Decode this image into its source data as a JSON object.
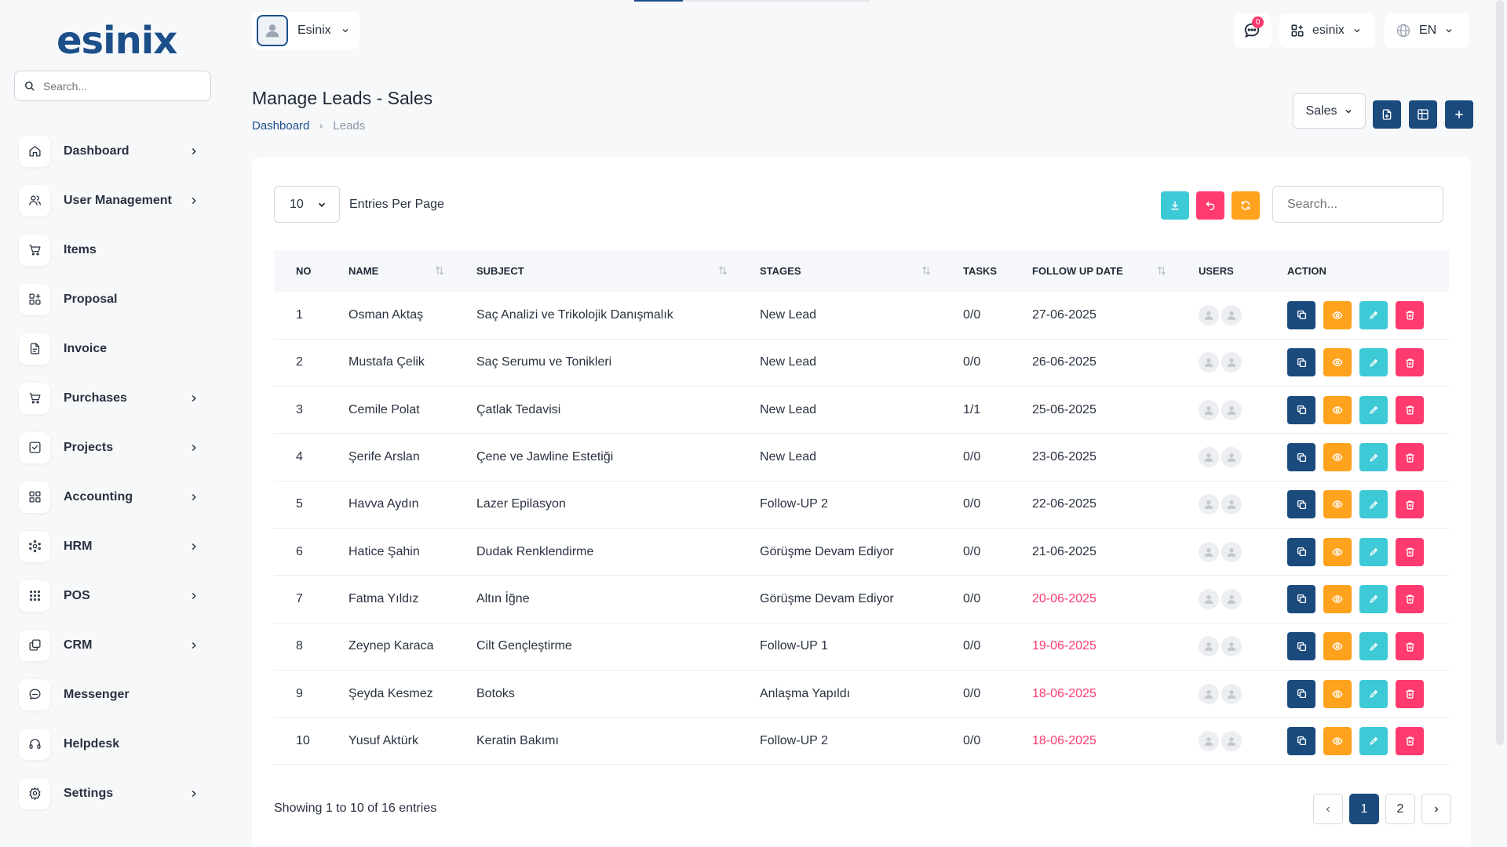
{
  "brand": {
    "logo": "esinix"
  },
  "sidebar": {
    "search_placeholder": "Search...",
    "items": [
      {
        "label": "Dashboard",
        "icon": "home-icon",
        "has_children": true
      },
      {
        "label": "User Management",
        "icon": "users-icon",
        "has_children": true
      },
      {
        "label": "Items",
        "icon": "cart-icon",
        "has_children": false
      },
      {
        "label": "Proposal",
        "icon": "apps-icon",
        "has_children": false
      },
      {
        "label": "Invoice",
        "icon": "file-icon",
        "has_children": false
      },
      {
        "label": "Purchases",
        "icon": "cart-icon",
        "has_children": true
      },
      {
        "label": "Projects",
        "icon": "checkbox-icon",
        "has_children": true
      },
      {
        "label": "Accounting",
        "icon": "grid-icon",
        "has_children": true
      },
      {
        "label": "HRM",
        "icon": "network-icon",
        "has_children": true
      },
      {
        "label": "POS",
        "icon": "dots-grid-icon",
        "has_children": true
      },
      {
        "label": "CRM",
        "icon": "layers-icon",
        "has_children": true
      },
      {
        "label": "Messenger",
        "icon": "message-icon",
        "has_children": false
      },
      {
        "label": "Helpdesk",
        "icon": "headset-icon",
        "has_children": false
      },
      {
        "label": "Settings",
        "icon": "settings-icon",
        "has_children": true
      }
    ]
  },
  "topbar": {
    "user_name": "Esinix",
    "notification_count": "0",
    "workspace": "esinix",
    "language": "EN"
  },
  "page": {
    "title": "Manage Leads - Sales",
    "breadcrumb": {
      "home": "Dashboard",
      "current": "Leads"
    },
    "pipeline_select": "Sales"
  },
  "table_controls": {
    "entries_value": "10",
    "entries_label": "Entries Per Page",
    "search_placeholder": "Search..."
  },
  "table": {
    "columns": [
      "NO",
      "NAME",
      "SUBJECT",
      "STAGES",
      "TASKS",
      "FOLLOW UP DATE",
      "USERS",
      "ACTION"
    ],
    "rows": [
      {
        "no": "1",
        "name": "Osman Aktaş",
        "subject": "Saç Analizi ve Trikolojik Danışmalık",
        "stage": "New Lead",
        "tasks": "0/0",
        "date": "27-06-2025",
        "overdue": false
      },
      {
        "no": "2",
        "name": "Mustafa Çelik",
        "subject": "Saç Serumu ve Tonikleri",
        "stage": "New Lead",
        "tasks": "0/0",
        "date": "26-06-2025",
        "overdue": false
      },
      {
        "no": "3",
        "name": "Cemile Polat",
        "subject": "Çatlak Tedavisi",
        "stage": "New Lead",
        "tasks": "1/1",
        "date": "25-06-2025",
        "overdue": false
      },
      {
        "no": "4",
        "name": "Şerife Arslan",
        "subject": "Çene ve Jawline Estetiği",
        "stage": "New Lead",
        "tasks": "0/0",
        "date": "23-06-2025",
        "overdue": false
      },
      {
        "no": "5",
        "name": "Havva Aydın",
        "subject": "Lazer Epilasyon",
        "stage": "Follow-UP 2",
        "tasks": "0/0",
        "date": "22-06-2025",
        "overdue": false
      },
      {
        "no": "6",
        "name": "Hatice Şahin",
        "subject": "Dudak Renklendirme",
        "stage": "Görüşme Devam Ediyor",
        "tasks": "0/0",
        "date": "21-06-2025",
        "overdue": false
      },
      {
        "no": "7",
        "name": "Fatma Yıldız",
        "subject": "Altın İğne",
        "stage": "Görüşme Devam Ediyor",
        "tasks": "0/0",
        "date": "20-06-2025",
        "overdue": true
      },
      {
        "no": "8",
        "name": "Zeynep Karaca",
        "subject": "Cilt Gençleştirme",
        "stage": "Follow-UP 1",
        "tasks": "0/0",
        "date": "19-06-2025",
        "overdue": true
      },
      {
        "no": "9",
        "name": "Şeyda Kesmez",
        "subject": "Botoks",
        "stage": "Anlaşma Yapıldı",
        "tasks": "0/0",
        "date": "18-06-2025",
        "overdue": true
      },
      {
        "no": "10",
        "name": "Yusuf Aktürk",
        "subject": "Keratin Bakımı",
        "stage": "Follow-UP 2",
        "tasks": "0/0",
        "date": "18-06-2025",
        "overdue": true
      }
    ]
  },
  "footer": {
    "showing": "Showing 1 to 10 of 16 entries",
    "pages": [
      "1",
      "2"
    ],
    "current_page": "1"
  },
  "colors": {
    "primary": "#1b4a7d",
    "orange": "#ffa21d",
    "cyan": "#3ec9d6",
    "pink": "#ff3a6e",
    "overdue": "#ff3a6e"
  }
}
